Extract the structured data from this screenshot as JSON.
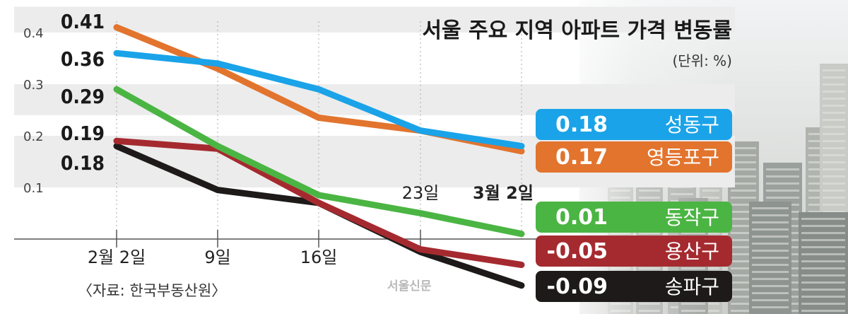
{
  "chart_data": {
    "type": "line",
    "title": "서울 주요 지역 아파트 가격 변동률",
    "unit_note": "(단위: %)",
    "source": "〈자료: 한국부동산원〉",
    "watermark": "서울신문",
    "x": [
      "2월 2일",
      "9일",
      "16일",
      "23일",
      "3월 2일"
    ],
    "y_ticks": [
      "0.4",
      "0.3",
      "0.2",
      "0.1"
    ],
    "ylim": [
      0,
      0.45
    ],
    "grid": "horizontal bands",
    "start_labels": [
      "0.41",
      "0.36",
      "0.29",
      "0.19",
      "0.18"
    ],
    "series": [
      {
        "name": "성동구",
        "end_label": "0.18",
        "color": "#1aa3e8",
        "values": [
          0.36,
          0.34,
          0.29,
          0.21,
          0.18
        ]
      },
      {
        "name": "영등포구",
        "end_label": "0.17",
        "color": "#e2742e",
        "values": [
          0.41,
          0.33,
          0.235,
          0.21,
          0.17
        ]
      },
      {
        "name": "동작구",
        "end_label": "0.01",
        "color": "#4bb543",
        "values": [
          0.29,
          0.18,
          0.085,
          0.05,
          0.01
        ]
      },
      {
        "name": "용산구",
        "end_label": "-0.05",
        "color": "#a52a2f",
        "values": [
          0.19,
          0.175,
          0.07,
          -0.02,
          -0.05
        ]
      },
      {
        "name": "송파구",
        "end_label": "-0.09",
        "color": "#1e1a1a",
        "values": [
          0.18,
          0.095,
          0.07,
          -0.025,
          -0.09
        ]
      }
    ]
  }
}
